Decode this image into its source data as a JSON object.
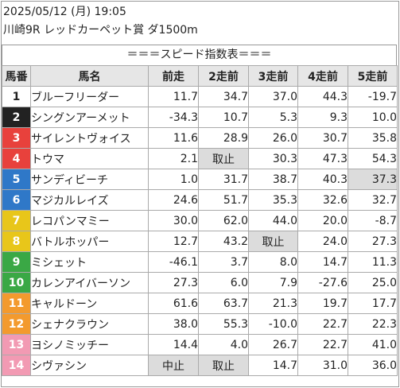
{
  "race": {
    "line1": "2025/05/12 (月) 19:05",
    "line2": "川崎9R レッドカーペット賞 ダ1500m"
  },
  "table": {
    "heading": "＝＝＝スピード指数表＝＝＝",
    "headers": [
      "馬番",
      "馬名",
      "前走",
      "2走前",
      "3走前",
      "4走前",
      "5走前"
    ],
    "rows": [
      {
        "num": "1",
        "name": "ブルーフリーダー",
        "vals": [
          "11.7",
          "34.7",
          "37.0",
          "44.3",
          "-19.7"
        ]
      },
      {
        "num": "2",
        "name": "シングンアーメット",
        "vals": [
          "-34.3",
          "10.7",
          "5.3",
          "9.3",
          "10.0"
        ]
      },
      {
        "num": "3",
        "name": "サイレントヴォイス",
        "vals": [
          "11.6",
          "28.9",
          "26.0",
          "30.7",
          "35.8"
        ]
      },
      {
        "num": "4",
        "name": "トウマ",
        "vals": [
          "2.1",
          "取止",
          "30.3",
          "47.3",
          "54.3"
        ]
      },
      {
        "num": "5",
        "name": "サンディビーチ",
        "vals": [
          "1.0",
          "31.7",
          "38.7",
          "40.3",
          "37.3"
        ]
      },
      {
        "num": "6",
        "name": "マジカルレイズ",
        "vals": [
          "24.6",
          "51.7",
          "35.3",
          "32.6",
          "32.7"
        ]
      },
      {
        "num": "7",
        "name": "レコパンマミー",
        "vals": [
          "30.0",
          "62.0",
          "44.0",
          "20.0",
          "-8.7"
        ]
      },
      {
        "num": "8",
        "name": "バトルホッパー",
        "vals": [
          "12.7",
          "43.2",
          "取止",
          "24.0",
          "27.3"
        ]
      },
      {
        "num": "9",
        "name": "ミシェット",
        "vals": [
          "-46.1",
          "3.7",
          "8.0",
          "14.7",
          "11.3"
        ]
      },
      {
        "num": "10",
        "name": "カレンアイバーソン",
        "vals": [
          "27.3",
          "6.0",
          "7.9",
          "-27.6",
          "25.0"
        ]
      },
      {
        "num": "11",
        "name": "キャルドーン",
        "vals": [
          "61.6",
          "63.7",
          "21.3",
          "19.7",
          "17.7"
        ]
      },
      {
        "num": "12",
        "name": "シェナクラウン",
        "vals": [
          "38.0",
          "55.3",
          "-10.0",
          "22.7",
          "22.3"
        ]
      },
      {
        "num": "13",
        "name": "ヨシノミッチー",
        "vals": [
          "14.4",
          "4.0",
          "26.7",
          "22.7",
          "41.0"
        ]
      },
      {
        "num": "14",
        "name": "シヴァシン",
        "vals": [
          "中止",
          "取止",
          "14.7",
          "31.0",
          "36.0"
        ]
      }
    ]
  },
  "colors": {
    "frame1": "#ffffff",
    "frame2": "#222222",
    "frame3": "#e8413c",
    "frame4": "#2f78c8",
    "frame5": "#e8c61a",
    "frame6": "#3aa845",
    "frame7": "#f39a2e",
    "frame8": "#f29ab3",
    "highlight_gray": "#dcdcdc",
    "mark_red": "#e02020",
    "mark_black": "#111111"
  }
}
